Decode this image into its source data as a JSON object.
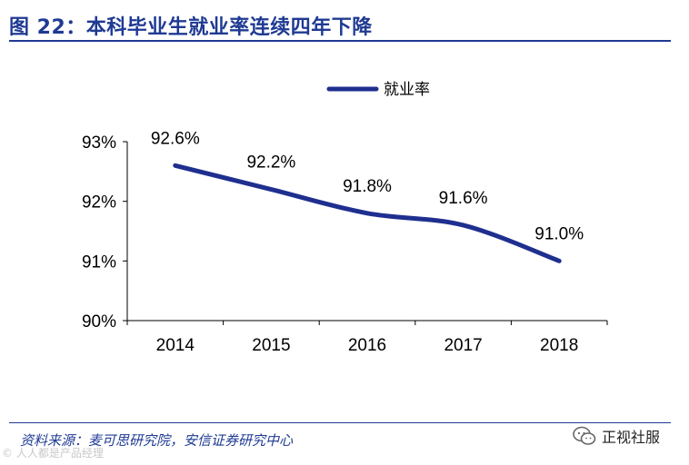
{
  "header": {
    "title": "图 22：本科毕业生就业率连续四年下降"
  },
  "footer": {
    "source": "资料来源：麦可思研究院，安信证券研究中心"
  },
  "brand": {
    "wechat_name": "正视社服",
    "watermark": "© 人人都是产品经理"
  },
  "colors": {
    "accent": "#1f3a93",
    "series": "#1f2f8f"
  },
  "chart_data": {
    "type": "line",
    "title": "",
    "xlabel": "",
    "ylabel": "",
    "categories": [
      "2014",
      "2015",
      "2016",
      "2017",
      "2018"
    ],
    "series": [
      {
        "name": "就业率",
        "values": [
          92.6,
          92.2,
          91.8,
          91.6,
          91.0
        ]
      }
    ],
    "data_labels": [
      "92.6%",
      "92.2%",
      "91.8%",
      "91.6%",
      "91.0%"
    ],
    "y_ticks": [
      90,
      91,
      92,
      93
    ],
    "y_tick_labels": [
      "90%",
      "91%",
      "92%",
      "93%"
    ],
    "ylim": [
      90,
      93
    ],
    "grid": false,
    "legend": "top-center"
  }
}
